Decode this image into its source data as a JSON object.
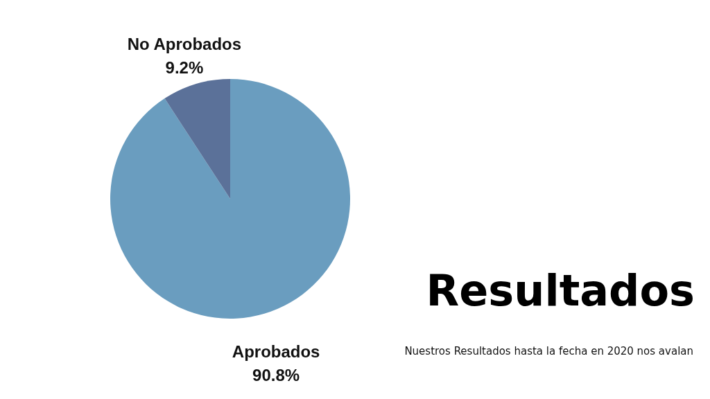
{
  "chart_data": {
    "type": "pie",
    "title": "Resultados",
    "categories": [
      "Aprobados",
      "No Aprobados"
    ],
    "values": [
      90.8,
      9.2
    ],
    "colors": [
      "#6a9dbf",
      "#5b7199"
    ],
    "value_labels": [
      "90.8%",
      "9.2%"
    ],
    "annotations": [
      "Nuestros Resultados hasta la fecha en 2020 nos avalan"
    ]
  }
}
